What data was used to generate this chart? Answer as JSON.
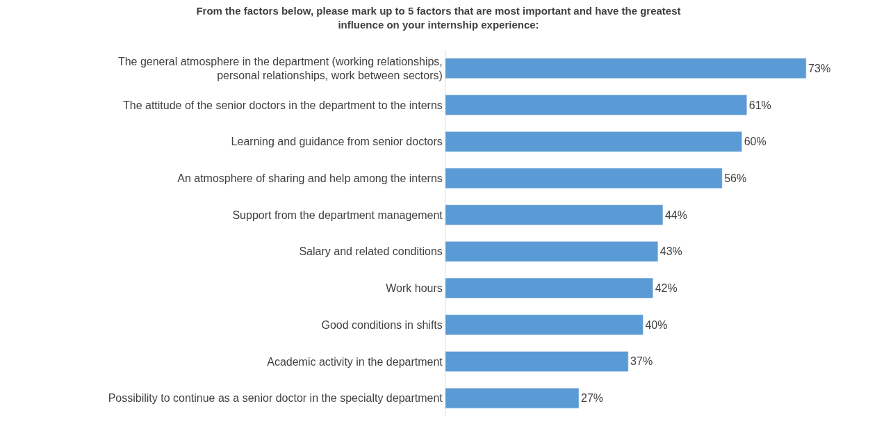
{
  "chart_data": {
    "type": "bar",
    "orientation": "horizontal",
    "title": "From the factors below, please mark up to 5 factors that are most important and have the greatest influence on your internship experience:",
    "categories": [
      "The general atmosphere in the department (working relationships, personal relationships, work between sectors)",
      "The attitude of the senior doctors in the department to the interns",
      "Learning and guidance from senior doctors",
      "An atmosphere of sharing and help among the interns",
      "Support from the department management",
      "Salary and related conditions",
      "Work hours",
      "Good conditions in shifts",
      "Academic activity in the department",
      "Possibility to continue as a senior doctor in the specialty department"
    ],
    "values": [
      73,
      61,
      60,
      56,
      44,
      43,
      42,
      40,
      37,
      27
    ],
    "value_labels": [
      "73%",
      "61%",
      "60%",
      "56%",
      "44%",
      "43%",
      "42%",
      "40%",
      "37%",
      "27%"
    ],
    "color": "#5b9bd5"
  }
}
